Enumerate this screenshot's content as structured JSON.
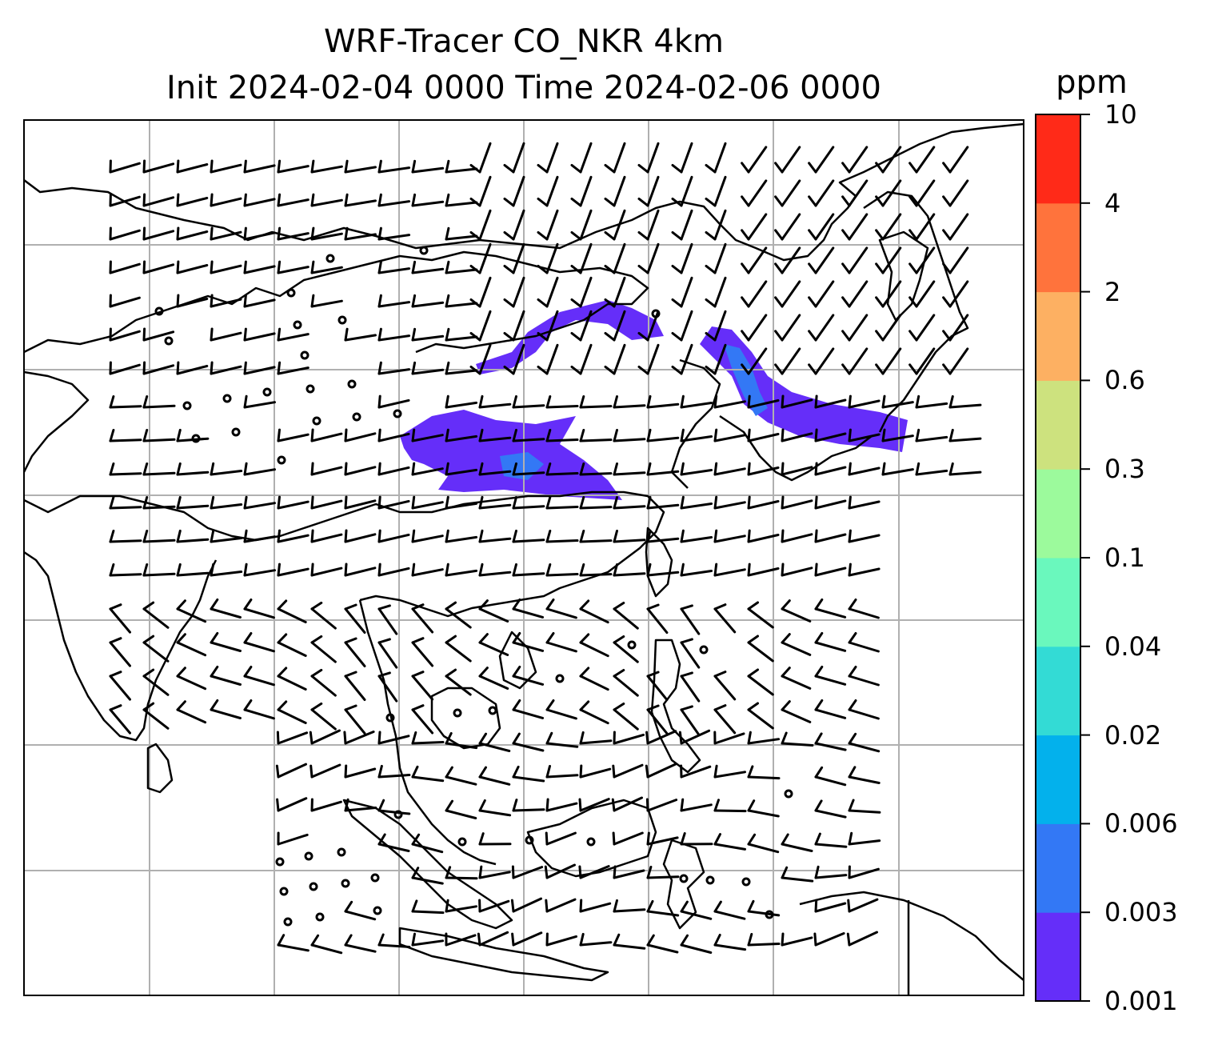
{
  "title": {
    "line1": "WRF-Tracer CO_NKR 4km",
    "line2": "Init 2024-02-04 0000 Time 2024-02-06 0000"
  },
  "colorbar": {
    "unit": "ppm",
    "levels": [
      "0.001",
      "0.003",
      "0.006",
      "0.02",
      "0.04",
      "0.1",
      "0.3",
      "0.6",
      "2",
      "4",
      "10"
    ],
    "colors": [
      "#652ef9",
      "#3378f5",
      "#03b1ec",
      "#33dbd5",
      "#6af8bd",
      "#9cfa9c",
      "#cde27e",
      "#fdb062",
      "#ff733c",
      "#ff2a18"
    ]
  },
  "map": {
    "gridlines": true,
    "plume_color": "#652ef9",
    "plume_core_color": "#3378f5"
  }
}
